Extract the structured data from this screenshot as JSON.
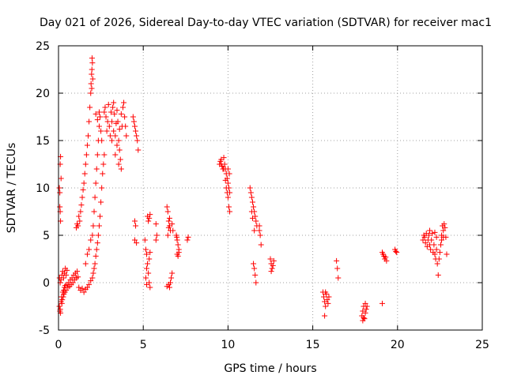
{
  "chart_data": {
    "type": "scatter",
    "title": "Day 021 of 2026, Sidereal Day-to-day VTEC variation (SDTVAR) for receiver mac1",
    "xlabel": "GPS time / hours",
    "ylabel": "SDTVAR / TECUs",
    "xlim": [
      0,
      25
    ],
    "ylim": [
      -5,
      25
    ],
    "xticks": [
      0,
      5,
      10,
      15,
      20,
      25
    ],
    "yticks": [
      -5,
      0,
      5,
      10,
      15,
      20,
      25
    ],
    "xtick_labels": [
      "0",
      "5",
      "10",
      "15",
      "20",
      "25"
    ],
    "ytick_labels": [
      "-5",
      "0",
      "5",
      "10",
      "15",
      "20",
      "25"
    ],
    "grid": true,
    "marker": "plus",
    "series": [
      {
        "name": "SDTVAR",
        "color": "#ff0000",
        "points": [
          [
            0.05,
            -2.5
          ],
          [
            0.08,
            -3.0
          ],
          [
            0.1,
            -2.8
          ],
          [
            0.12,
            -3.2
          ],
          [
            0.15,
            -2.0
          ],
          [
            0.18,
            -1.5
          ],
          [
            0.2,
            -2.2
          ],
          [
            0.22,
            -1.8
          ],
          [
            0.25,
            -1.0
          ],
          [
            0.28,
            -1.5
          ],
          [
            0.3,
            -0.8
          ],
          [
            0.32,
            -1.2
          ],
          [
            0.35,
            -0.5
          ],
          [
            0.38,
            -1.0
          ],
          [
            0.4,
            -0.3
          ],
          [
            0.45,
            -0.8
          ],
          [
            0.5,
            -0.2
          ],
          [
            0.55,
            -0.5
          ],
          [
            0.6,
            0.0
          ],
          [
            0.65,
            -0.4
          ],
          [
            0.7,
            0.3
          ],
          [
            0.75,
            -0.2
          ],
          [
            0.8,
            0.5
          ],
          [
            0.85,
            0.0
          ],
          [
            0.9,
            0.8
          ],
          [
            0.95,
            0.3
          ],
          [
            1.0,
            1.0
          ],
          [
            1.05,
            0.5
          ],
          [
            1.1,
            1.2
          ],
          [
            1.15,
            0.6
          ],
          [
            0.05,
            10.0
          ],
          [
            0.08,
            9.5
          ],
          [
            0.1,
            12.5
          ],
          [
            0.12,
            13.3
          ],
          [
            0.15,
            11.0
          ],
          [
            0.08,
            8.0
          ],
          [
            0.1,
            7.5
          ],
          [
            0.12,
            6.5
          ],
          [
            0.06,
            0.5
          ],
          [
            0.1,
            0.0
          ],
          [
            0.15,
            0.3
          ],
          [
            0.2,
            0.8
          ],
          [
            0.25,
            1.2
          ],
          [
            0.3,
            0.5
          ],
          [
            0.35,
            1.0
          ],
          [
            0.4,
            1.5
          ],
          [
            0.45,
            0.8
          ],
          [
            0.5,
            1.3
          ],
          [
            1.05,
            5.8
          ],
          [
            1.1,
            6.2
          ],
          [
            1.15,
            6.0
          ],
          [
            1.2,
            7.0
          ],
          [
            1.25,
            6.5
          ],
          [
            1.3,
            7.5
          ],
          [
            1.35,
            8.2
          ],
          [
            1.4,
            9.0
          ],
          [
            1.45,
            9.8
          ],
          [
            1.5,
            10.5
          ],
          [
            1.55,
            11.5
          ],
          [
            1.6,
            12.5
          ],
          [
            1.65,
            13.5
          ],
          [
            1.7,
            14.5
          ],
          [
            1.75,
            15.5
          ],
          [
            1.8,
            17.0
          ],
          [
            1.85,
            18.5
          ],
          [
            1.9,
            20.0
          ],
          [
            1.92,
            21.0
          ],
          [
            1.95,
            22.0
          ],
          [
            1.97,
            22.5
          ],
          [
            2.0,
            23.2
          ],
          [
            1.98,
            23.7
          ],
          [
            2.02,
            21.5
          ],
          [
            1.96,
            20.5
          ],
          [
            1.2,
            -0.5
          ],
          [
            1.3,
            -0.8
          ],
          [
            1.4,
            -0.6
          ],
          [
            1.5,
            -1.0
          ],
          [
            1.6,
            -0.7
          ],
          [
            1.7,
            -0.5
          ],
          [
            1.8,
            -0.2
          ],
          [
            1.9,
            0.2
          ],
          [
            2.0,
            0.5
          ],
          [
            2.05,
            1.0
          ],
          [
            2.1,
            1.5
          ],
          [
            2.15,
            2.0
          ],
          [
            2.2,
            2.8
          ],
          [
            2.25,
            3.5
          ],
          [
            2.3,
            4.2
          ],
          [
            2.35,
            5.0
          ],
          [
            2.4,
            6.0
          ],
          [
            2.45,
            7.0
          ],
          [
            2.5,
            8.5
          ],
          [
            2.55,
            10.0
          ],
          [
            2.6,
            11.5
          ],
          [
            2.65,
            12.5
          ],
          [
            2.7,
            13.5
          ],
          [
            1.6,
            2.0
          ],
          [
            1.7,
            3.0
          ],
          [
            1.8,
            3.5
          ],
          [
            1.9,
            4.5
          ],
          [
            2.0,
            5.0
          ],
          [
            2.05,
            6.0
          ],
          [
            2.1,
            7.5
          ],
          [
            2.15,
            9.0
          ],
          [
            2.2,
            10.5
          ],
          [
            2.25,
            12.0
          ],
          [
            2.3,
            13.5
          ],
          [
            2.35,
            15.0
          ],
          [
            2.4,
            16.5
          ],
          [
            2.45,
            17.5
          ],
          [
            2.5,
            16.0
          ],
          [
            2.55,
            15.0
          ],
          [
            2.2,
            17.8
          ],
          [
            2.3,
            17.2
          ],
          [
            2.4,
            18.0
          ],
          [
            2.7,
            18.0
          ],
          [
            2.8,
            17.5
          ],
          [
            2.9,
            17.0
          ],
          [
            3.0,
            16.5
          ],
          [
            3.1,
            18.0
          ],
          [
            3.15,
            17.0
          ],
          [
            3.2,
            18.5
          ],
          [
            3.25,
            16.0
          ],
          [
            3.3,
            17.8
          ],
          [
            3.35,
            15.5
          ],
          [
            3.4,
            16.8
          ],
          [
            3.45,
            18.2
          ],
          [
            3.5,
            17.0
          ],
          [
            3.55,
            15.0
          ],
          [
            3.6,
            14.0
          ],
          [
            3.65,
            13.0
          ],
          [
            3.7,
            12.0
          ],
          [
            3.75,
            16.5
          ],
          [
            3.8,
            18.5
          ],
          [
            3.85,
            19.0
          ],
          [
            3.9,
            17.5
          ],
          [
            3.95,
            16.5
          ],
          [
            4.0,
            15.5
          ],
          [
            2.75,
            18.5
          ],
          [
            2.85,
            16.0
          ],
          [
            2.95,
            18.8
          ],
          [
            3.05,
            15.5
          ],
          [
            3.25,
            19.0
          ],
          [
            3.45,
            14.5
          ],
          [
            3.55,
            12.5
          ],
          [
            3.6,
            16.2
          ],
          [
            3.7,
            17.8
          ],
          [
            3.15,
            15.0
          ],
          [
            3.35,
            13.5
          ],
          [
            4.4,
            17.5
          ],
          [
            4.45,
            17.0
          ],
          [
            4.5,
            16.5
          ],
          [
            4.55,
            16.0
          ],
          [
            4.6,
            15.5
          ],
          [
            4.65,
            15.0
          ],
          [
            4.7,
            14.0
          ],
          [
            4.5,
            6.5
          ],
          [
            4.55,
            6.0
          ],
          [
            4.5,
            4.5
          ],
          [
            4.6,
            4.2
          ],
          [
            5.1,
            4.5
          ],
          [
            5.15,
            3.5
          ],
          [
            5.2,
            3.0
          ],
          [
            5.25,
            2.0
          ],
          [
            5.3,
            1.0
          ],
          [
            5.35,
            0.0
          ],
          [
            5.4,
            -0.5
          ],
          [
            5.25,
            7.0
          ],
          [
            5.3,
            6.5
          ],
          [
            5.35,
            6.8
          ],
          [
            5.4,
            7.2
          ],
          [
            5.2,
            -0.2
          ],
          [
            5.15,
            0.5
          ],
          [
            5.2,
            1.5
          ],
          [
            5.35,
            2.5
          ],
          [
            5.4,
            3.2
          ],
          [
            5.75,
            4.5
          ],
          [
            5.8,
            5.0
          ],
          [
            5.75,
            6.2
          ],
          [
            6.4,
            8.0
          ],
          [
            6.45,
            7.5
          ],
          [
            6.5,
            6.5
          ],
          [
            6.55,
            6.0
          ],
          [
            6.6,
            5.5
          ],
          [
            6.45,
            5.0
          ],
          [
            6.5,
            -0.2
          ],
          [
            6.55,
            -0.5
          ],
          [
            6.6,
            0.0
          ],
          [
            6.65,
            0.5
          ],
          [
            6.7,
            1.0
          ],
          [
            6.5,
            5.8
          ],
          [
            6.55,
            6.8
          ],
          [
            6.7,
            6.2
          ],
          [
            6.75,
            5.5
          ],
          [
            6.4,
            -0.4
          ],
          [
            6.95,
            5.0
          ],
          [
            7.0,
            4.5
          ],
          [
            7.05,
            4.0
          ],
          [
            7.1,
            3.5
          ],
          [
            7.0,
            3.0
          ],
          [
            7.05,
            2.8
          ],
          [
            7.1,
            3.2
          ],
          [
            6.98,
            4.8
          ],
          [
            7.6,
            4.5
          ],
          [
            7.65,
            4.8
          ],
          [
            9.5,
            12.5
          ],
          [
            9.55,
            12.8
          ],
          [
            9.6,
            13.0
          ],
          [
            9.65,
            12.3
          ],
          [
            9.7,
            12.0
          ],
          [
            9.75,
            13.2
          ],
          [
            9.8,
            12.5
          ],
          [
            9.85,
            12.0
          ],
          [
            9.9,
            11.5
          ],
          [
            9.95,
            11.0
          ],
          [
            10.0,
            10.5
          ],
          [
            10.05,
            10.0
          ],
          [
            10.1,
            9.5
          ],
          [
            9.9,
            10.0
          ],
          [
            9.95,
            9.5
          ],
          [
            10.0,
            9.0
          ],
          [
            10.05,
            8.0
          ],
          [
            10.1,
            7.5
          ],
          [
            9.85,
            10.8
          ],
          [
            9.75,
            12.0
          ],
          [
            9.6,
            12.5
          ],
          [
            10.08,
            11.5
          ],
          [
            10.0,
            12.0
          ],
          [
            11.3,
            10.0
          ],
          [
            11.35,
            9.5
          ],
          [
            11.4,
            9.0
          ],
          [
            11.45,
            8.5
          ],
          [
            11.5,
            8.0
          ],
          [
            11.55,
            7.5
          ],
          [
            11.6,
            7.0
          ],
          [
            11.65,
            6.5
          ],
          [
            11.7,
            6.0
          ],
          [
            11.5,
            2.0
          ],
          [
            11.55,
            1.5
          ],
          [
            11.6,
            0.8
          ],
          [
            11.65,
            0.0
          ],
          [
            11.4,
            7.5
          ],
          [
            11.45,
            6.8
          ],
          [
            11.55,
            5.5
          ],
          [
            11.85,
            6.0
          ],
          [
            11.9,
            5.0
          ],
          [
            11.95,
            4.0
          ],
          [
            11.85,
            5.5
          ],
          [
            12.5,
            2.5
          ],
          [
            12.55,
            2.0
          ],
          [
            12.6,
            1.5
          ],
          [
            12.65,
            1.8
          ],
          [
            12.7,
            2.3
          ],
          [
            12.55,
            1.2
          ],
          [
            15.6,
            -1.0
          ],
          [
            15.65,
            -1.5
          ],
          [
            15.7,
            -2.0
          ],
          [
            15.75,
            -2.5
          ],
          [
            15.8,
            -1.2
          ],
          [
            15.85,
            -1.8
          ],
          [
            15.9,
            -2.2
          ],
          [
            15.7,
            -3.5
          ],
          [
            15.75,
            -1.0
          ],
          [
            15.95,
            -1.5
          ],
          [
            16.4,
            2.3
          ],
          [
            16.45,
            1.5
          ],
          [
            16.5,
            0.5
          ],
          [
            17.9,
            -3.5
          ],
          [
            17.95,
            -3.0
          ],
          [
            18.0,
            -2.5
          ],
          [
            18.05,
            -3.8
          ],
          [
            18.1,
            -3.2
          ],
          [
            18.15,
            -2.8
          ],
          [
            18.2,
            -2.5
          ],
          [
            17.95,
            -4.0
          ],
          [
            18.0,
            -3.7
          ],
          [
            18.1,
            -2.2
          ],
          [
            19.1,
            3.2
          ],
          [
            19.15,
            3.0
          ],
          [
            19.2,
            2.8
          ],
          [
            19.25,
            2.5
          ],
          [
            19.3,
            2.7
          ],
          [
            19.35,
            2.3
          ],
          [
            19.1,
            -2.2
          ],
          [
            19.85,
            3.5
          ],
          [
            19.9,
            3.3
          ],
          [
            19.95,
            3.2
          ],
          [
            21.5,
            4.5
          ],
          [
            21.55,
            5.0
          ],
          [
            21.6,
            4.8
          ],
          [
            21.65,
            4.2
          ],
          [
            21.7,
            5.2
          ],
          [
            21.75,
            3.8
          ],
          [
            21.8,
            4.5
          ],
          [
            21.85,
            5.0
          ],
          [
            21.9,
            4.0
          ],
          [
            21.95,
            3.5
          ],
          [
            22.0,
            4.5
          ],
          [
            22.05,
            5.2
          ],
          [
            22.1,
            3.2
          ],
          [
            22.15,
            4.0
          ],
          [
            22.2,
            3.0
          ],
          [
            22.25,
            2.5
          ],
          [
            22.3,
            3.5
          ],
          [
            22.35,
            2.0
          ],
          [
            22.4,
            0.8
          ],
          [
            22.45,
            2.5
          ],
          [
            22.5,
            3.2
          ],
          [
            22.55,
            4.0
          ],
          [
            22.6,
            5.0
          ],
          [
            22.65,
            6.0
          ],
          [
            22.7,
            5.5
          ],
          [
            22.75,
            6.2
          ],
          [
            22.8,
            5.8
          ],
          [
            22.85,
            4.8
          ],
          [
            22.9,
            3.0
          ],
          [
            22.2,
            5.3
          ],
          [
            22.3,
            4.8
          ],
          [
            21.9,
            5.5
          ],
          [
            22.6,
            4.5
          ],
          [
            22.7,
            4.8
          ]
        ]
      }
    ]
  }
}
